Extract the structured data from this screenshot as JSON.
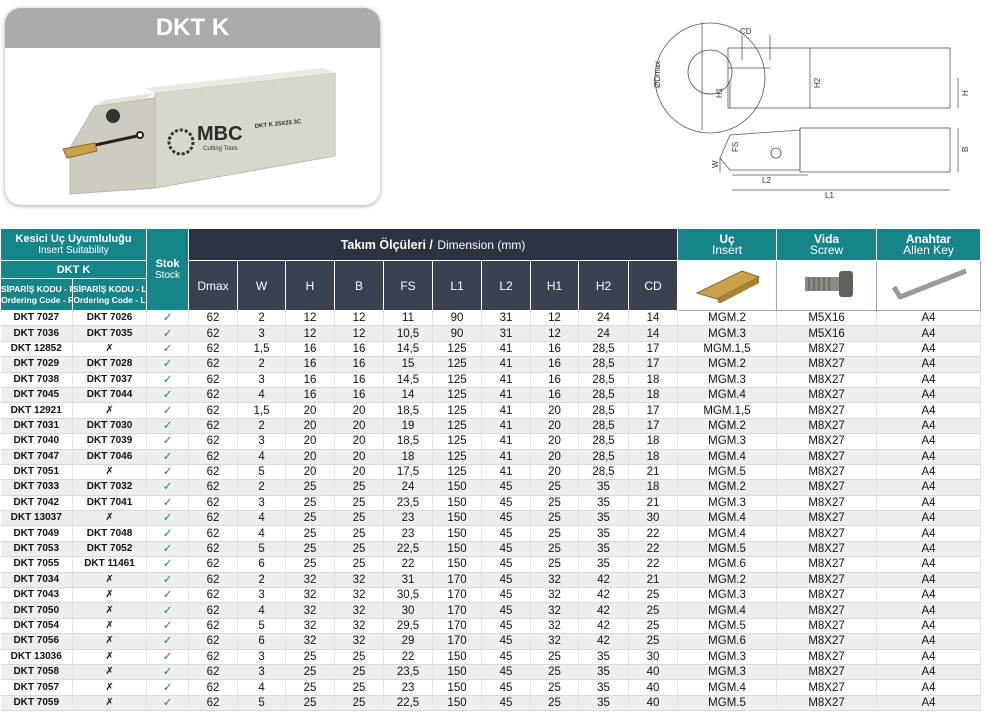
{
  "header": {
    "title": "DKT K"
  },
  "product_image": {
    "brand": "MBC",
    "brand_tagline": "Cutting Tools",
    "marking": "DKT K 25X25 3C"
  },
  "drawing": {
    "labels": [
      "CD",
      "ØDmax",
      "H1",
      "H2",
      "H",
      "W",
      "FS",
      "B",
      "L2",
      "L1"
    ]
  },
  "table": {
    "insert_suitability": {
      "title": "Kesici Uç Uyumluluğu",
      "subtitle": "Insert Suitability"
    },
    "product_group": "DKT K",
    "ordering_code_r": {
      "title": "SİPARİŞ KODU - R",
      "subtitle": "Ordering Code - R"
    },
    "ordering_code_l": {
      "title": "SİPARİŞ KODU - L",
      "subtitle": "Ordering Code - L"
    },
    "stock": {
      "title": "Stok",
      "subtitle": "Stock"
    },
    "dimensions": {
      "title": "Takım Ölçüleri /",
      "subtitle": "Dimension (mm)"
    },
    "dimension_columns": [
      "Dmax",
      "W",
      "H",
      "B",
      "FS",
      "L1",
      "L2",
      "H1",
      "H2",
      "CD"
    ],
    "insert": {
      "title": "Uç",
      "subtitle": "Insert"
    },
    "screw": {
      "title": "Vida",
      "subtitle": "Screw"
    },
    "key": {
      "title": "Anahtar",
      "subtitle": "Allen Key"
    },
    "rows": [
      [
        "DKT 7027",
        "DKT 7026",
        "✓",
        "62",
        "2",
        "12",
        "12",
        "11",
        "90",
        "31",
        "12",
        "24",
        "14",
        "MGM.2",
        "M5X16",
        "A4"
      ],
      [
        "DKT 7036",
        "DKT 7035",
        "✓",
        "62",
        "3",
        "12",
        "12",
        "10,5",
        "90",
        "31",
        "12",
        "24",
        "14",
        "MGM.3",
        "M5X16",
        "A4"
      ],
      [
        "DKT 12852",
        "✗",
        "✓",
        "62",
        "1,5",
        "16",
        "16",
        "14,5",
        "125",
        "41",
        "16",
        "28,5",
        "17",
        "MGM.1,5",
        "M8X27",
        "A4"
      ],
      [
        "DKT 7029",
        "DKT 7028",
        "✓",
        "62",
        "2",
        "16",
        "16",
        "15",
        "125",
        "41",
        "16",
        "28,5",
        "17",
        "MGM.2",
        "M8X27",
        "A4"
      ],
      [
        "DKT 7038",
        "DKT 7037",
        "✓",
        "62",
        "3",
        "16",
        "16",
        "14,5",
        "125",
        "41",
        "16",
        "28,5",
        "18",
        "MGM.3",
        "M8X27",
        "A4"
      ],
      [
        "DKT 7045",
        "DKT 7044",
        "✓",
        "62",
        "4",
        "16",
        "16",
        "14",
        "125",
        "41",
        "16",
        "28,5",
        "18",
        "MGM.4",
        "M8X27",
        "A4"
      ],
      [
        "DKT 12921",
        "✗",
        "✓",
        "62",
        "1,5",
        "20",
        "20",
        "18,5",
        "125",
        "41",
        "20",
        "28,5",
        "17",
        "MGM.1,5",
        "M8X27",
        "A4"
      ],
      [
        "DKT 7031",
        "DKT 7030",
        "✓",
        "62",
        "2",
        "20",
        "20",
        "19",
        "125",
        "41",
        "20",
        "28,5",
        "17",
        "MGM.2",
        "M8X27",
        "A4"
      ],
      [
        "DKT 7040",
        "DKT 7039",
        "✓",
        "62",
        "3",
        "20",
        "20",
        "18,5",
        "125",
        "41",
        "20",
        "28,5",
        "18",
        "MGM.3",
        "M8X27",
        "A4"
      ],
      [
        "DKT 7047",
        "DKT 7046",
        "✓",
        "62",
        "4",
        "20",
        "20",
        "18",
        "125",
        "41",
        "20",
        "28,5",
        "18",
        "MGM.4",
        "M8X27",
        "A4"
      ],
      [
        "DKT 7051",
        "✗",
        "✓",
        "62",
        "5",
        "20",
        "20",
        "17,5",
        "125",
        "41",
        "20",
        "28,5",
        "21",
        "MGM.5",
        "M8X27",
        "A4"
      ],
      [
        "DKT 7033",
        "DKT 7032",
        "✓",
        "62",
        "2",
        "25",
        "25",
        "24",
        "150",
        "45",
        "25",
        "35",
        "18",
        "MGM.2",
        "M8X27",
        "A4"
      ],
      [
        "DKT 7042",
        "DKT 7041",
        "✓",
        "62",
        "3",
        "25",
        "25",
        "23,5",
        "150",
        "45",
        "25",
        "35",
        "21",
        "MGM.3",
        "M8X27",
        "A4"
      ],
      [
        "DKT 13037",
        "✗",
        "✓",
        "62",
        "4",
        "25",
        "25",
        "23",
        "150",
        "45",
        "25",
        "35",
        "30",
        "MGM.4",
        "M8X27",
        "A4"
      ],
      [
        "DKT 7049",
        "DKT 7048",
        "✓",
        "62",
        "4",
        "25",
        "25",
        "23",
        "150",
        "45",
        "25",
        "35",
        "22",
        "MGM.4",
        "M8X27",
        "A4"
      ],
      [
        "DKT 7053",
        "DKT 7052",
        "✓",
        "62",
        "5",
        "25",
        "25",
        "22,5",
        "150",
        "45",
        "25",
        "35",
        "22",
        "MGM.5",
        "M8X27",
        "A4"
      ],
      [
        "DKT 7055",
        "DKT 11461",
        "✓",
        "62",
        "6",
        "25",
        "25",
        "22",
        "150",
        "45",
        "25",
        "35",
        "22",
        "MGM.6",
        "M8X27",
        "A4"
      ],
      [
        "DKT 7034",
        "✗",
        "✓",
        "62",
        "2",
        "32",
        "32",
        "31",
        "170",
        "45",
        "32",
        "42",
        "21",
        "MGM.2",
        "M8X27",
        "A4"
      ],
      [
        "DKT 7043",
        "✗",
        "✓",
        "62",
        "3",
        "32",
        "32",
        "30,5",
        "170",
        "45",
        "32",
        "42",
        "25",
        "MGM.3",
        "M8X27",
        "A4"
      ],
      [
        "DKT 7050",
        "✗",
        "✓",
        "62",
        "4",
        "32",
        "32",
        "30",
        "170",
        "45",
        "32",
        "42",
        "25",
        "MGM.4",
        "M8X27",
        "A4"
      ],
      [
        "DKT 7054",
        "✗",
        "✓",
        "62",
        "5",
        "32",
        "32",
        "29,5",
        "170",
        "45",
        "32",
        "42",
        "25",
        "MGM.5",
        "M8X27",
        "A4"
      ],
      [
        "DKT 7056",
        "✗",
        "✓",
        "62",
        "6",
        "32",
        "32",
        "29",
        "170",
        "45",
        "32",
        "42",
        "25",
        "MGM.6",
        "M8X27",
        "A4"
      ],
      [
        "DKT 13036",
        "✗",
        "✓",
        "62",
        "3",
        "25",
        "25",
        "22",
        "150",
        "45",
        "25",
        "35",
        "30",
        "MGM.3",
        "M8X27",
        "A4"
      ],
      [
        "DKT 7058",
        "✗",
        "✓",
        "62",
        "3",
        "25",
        "25",
        "23,5",
        "150",
        "45",
        "25",
        "35",
        "40",
        "MGM.3",
        "M8X27",
        "A4"
      ],
      [
        "DKT 7057",
        "✗",
        "✓",
        "62",
        "4",
        "25",
        "25",
        "23",
        "150",
        "45",
        "25",
        "35",
        "40",
        "MGM.4",
        "M8X27",
        "A4"
      ],
      [
        "DKT 7059",
        "✗",
        "✓",
        "62",
        "5",
        "25",
        "25",
        "22,5",
        "150",
        "45",
        "25",
        "35",
        "40",
        "MGM.5",
        "M8X27",
        "A4"
      ]
    ]
  }
}
